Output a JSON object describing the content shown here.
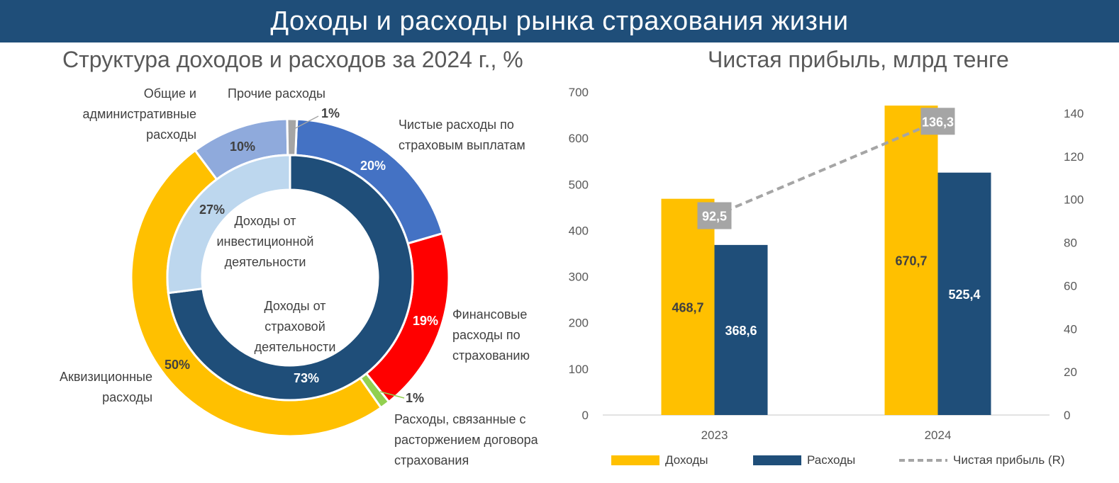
{
  "page": {
    "title": "Доходы и расходы рынка страхования жизни"
  },
  "chart_data": [
    {
      "type": "pie",
      "title": "Структура доходов и расходов за 2024 г., %",
      "outer_ring": {
        "slices": [
          {
            "label": "Чистые расходы по страховым выплатам",
            "value": 20,
            "pct_label": "20%",
            "color": "#4472c4"
          },
          {
            "label": "Финансовые расходы по страхованию",
            "value": 19,
            "pct_label": "19%",
            "color": "#ff0000"
          },
          {
            "label": "Расходы, связанные с расторжением договора страхования",
            "value": 1,
            "pct_label": "1%",
            "color": "#92d050"
          },
          {
            "label": "Аквизиционные расходы",
            "value": 50,
            "pct_label": "50%",
            "color": "#ffc000"
          },
          {
            "label": "Общие и административные расходы",
            "value": 10,
            "pct_label": "10%",
            "color": "#8faadc"
          },
          {
            "label": "Прочие расходы",
            "value": 1,
            "pct_label": "1%",
            "color": "#a5a5a5"
          }
        ]
      },
      "inner_ring": {
        "slices": [
          {
            "label": "Доходы от страховой деятельности",
            "value": 73,
            "pct_label": "73%",
            "color": "#1f4e79"
          },
          {
            "label": "Доходы от инвестиционной деятельности",
            "value": 27,
            "pct_label": "27%",
            "color": "#bdd7ee"
          }
        ]
      }
    },
    {
      "type": "bar",
      "title": "Чистая прибыль, млрд тенге",
      "categories": [
        "2023",
        "2024"
      ],
      "series": [
        {
          "name": "Доходы",
          "values": [
            468.7,
            670.7
          ],
          "labels": [
            "468,7",
            "670,7"
          ],
          "color": "#ffc000"
        },
        {
          "name": "Расходы",
          "values": [
            368.6,
            525.4
          ],
          "labels": [
            "368,6",
            "525,4"
          ],
          "color": "#1f4e79"
        },
        {
          "name": "Чистая прибыль (R)",
          "type": "line",
          "axis": "right",
          "values": [
            92.5,
            136.3
          ],
          "labels": [
            "92,5",
            "136,3"
          ],
          "color": "#a5a5a5",
          "dashed": true
        }
      ],
      "ylim_left": [
        0,
        700
      ],
      "yticks_left": [
        "0",
        "100",
        "200",
        "300",
        "400",
        "500",
        "600",
        "700"
      ],
      "ylim_right": [
        0,
        150
      ],
      "yticks_right": [
        "0",
        "20",
        "40",
        "60",
        "80",
        "100",
        "120",
        "140"
      ],
      "legend_position": "bottom",
      "grid": false
    }
  ]
}
